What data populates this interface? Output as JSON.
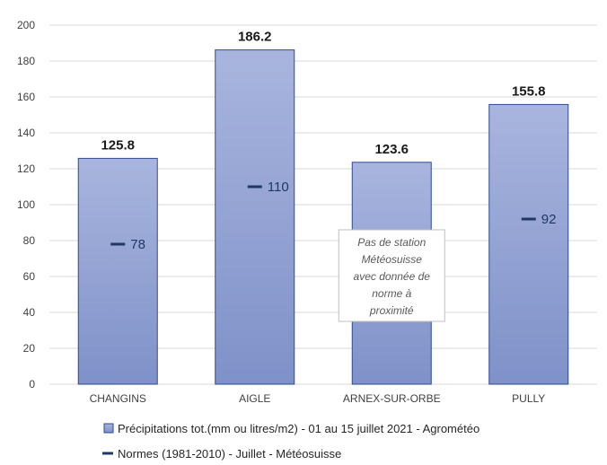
{
  "chart_data": {
    "type": "bar",
    "categories": [
      "CHANGINS",
      "AIGLE",
      "ARNEX-SUR-ORBE",
      "PULLY"
    ],
    "series": [
      {
        "name": "Précipitations tot.(mm ou litres/m2) - 01 au 15 juillet 2021 - Agrométéo",
        "type": "bar",
        "values": [
          125.8,
          186.2,
          123.6,
          155.8
        ],
        "data_labels": [
          "125.8",
          "186.2",
          "123.6",
          "155.8"
        ]
      },
      {
        "name": "Normes (1981-2010) - Juillet - Météosuisse",
        "type": "marker",
        "values": [
          78,
          110,
          null,
          92
        ],
        "data_labels": [
          "78",
          "110",
          "",
          "92"
        ]
      }
    ],
    "ylim": [
      0,
      200
    ],
    "yticks": [
      0,
      20,
      40,
      60,
      80,
      100,
      120,
      140,
      160,
      180,
      200
    ],
    "grid": true,
    "legend_position": "bottom",
    "annotation": {
      "category": "ARNEX-SUR-ORBE",
      "lines": [
        "Pas de station",
        "Météosuisse",
        "avec donnée de",
        "norme à",
        "proximité"
      ]
    },
    "colors": {
      "bar_top": "#a9b5de",
      "bar_bottom": "#7f91c9",
      "bar_border": "#2e4a8f",
      "norm_marker": "#1f3864",
      "grid": "#d9d9d9"
    }
  }
}
